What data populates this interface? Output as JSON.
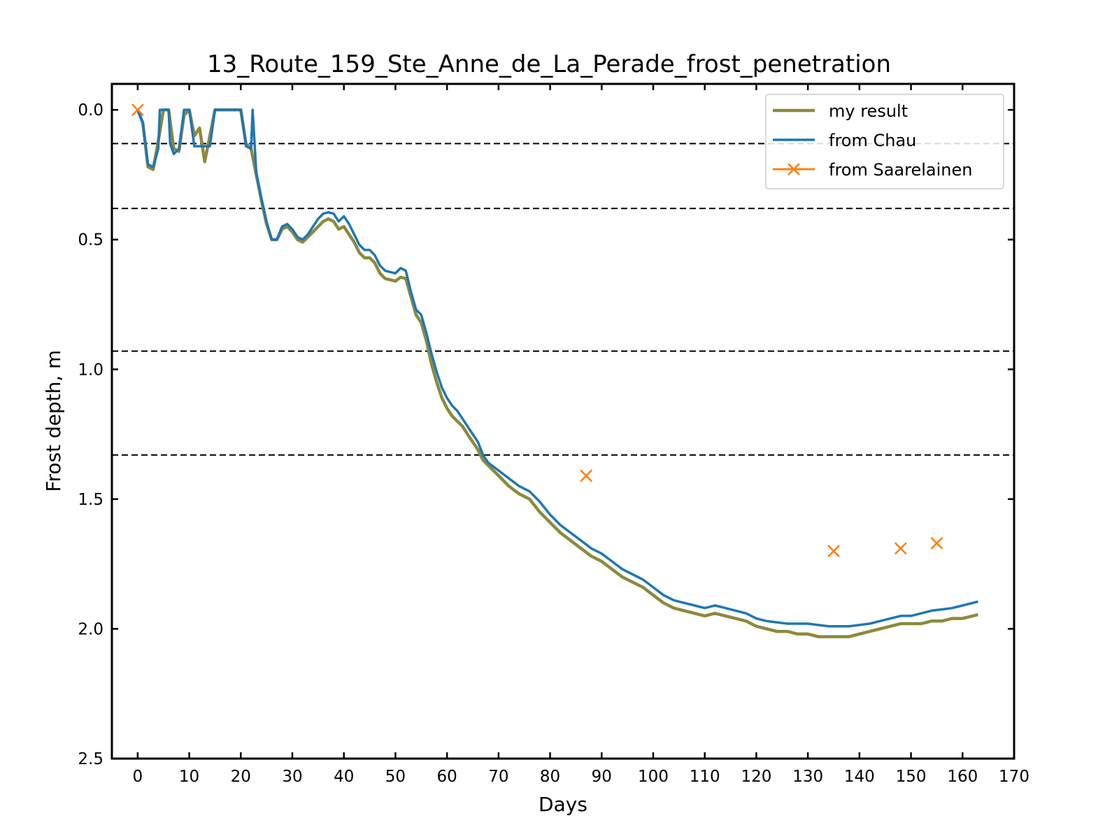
{
  "chart_data": {
    "type": "line",
    "title": "13_Route_159_Ste_Anne_de_La_Perade_frost_penetration",
    "xlabel": "Days",
    "ylabel": "Frost depth, m",
    "xlim": [
      -5,
      170
    ],
    "ylim": [
      2.5,
      -0.1
    ],
    "y_inverted": true,
    "x_ticks": [
      0,
      10,
      20,
      30,
      40,
      50,
      60,
      70,
      80,
      90,
      100,
      110,
      120,
      130,
      140,
      150,
      160,
      170
    ],
    "y_ticks": [
      "0.0",
      "0.5",
      "1.0",
      "1.5",
      "2.0",
      "2.5"
    ],
    "grid": false,
    "legend_position": "top-right",
    "reference_lines_y": [
      0.13,
      0.38,
      0.93,
      1.33
    ],
    "colors": {
      "my_result": "#8c8a3c",
      "chau": "#1f77b4",
      "saarelainen": "#ff7f0e",
      "reference": "#000000"
    },
    "series": [
      {
        "name": "my result",
        "style": "line",
        "x": [
          0,
          1,
          2,
          3,
          4,
          5,
          6,
          7,
          8,
          9,
          10,
          11,
          12,
          13,
          14,
          15,
          16,
          17,
          18,
          19,
          20,
          21,
          22,
          23,
          24,
          25,
          26,
          27,
          28,
          29,
          30,
          31,
          32,
          33,
          34,
          35,
          36,
          37,
          38,
          39,
          40,
          41,
          42,
          43,
          44,
          45,
          46,
          47,
          48,
          49,
          50,
          51,
          52,
          53,
          54,
          55,
          56,
          57,
          58,
          59,
          60,
          61,
          62,
          63,
          64,
          65,
          66,
          67,
          68,
          70,
          72,
          74,
          76,
          78,
          80,
          82,
          84,
          86,
          88,
          90,
          92,
          94,
          96,
          98,
          100,
          102,
          104,
          106,
          108,
          110,
          112,
          114,
          116,
          118,
          120,
          122,
          124,
          126,
          128,
          130,
          132,
          134,
          136,
          138,
          140,
          142,
          144,
          146,
          148,
          150,
          152,
          154,
          156,
          158,
          160,
          162,
          163
        ],
        "y": [
          0,
          0.05,
          0.22,
          0.23,
          0.12,
          0,
          0,
          0.15,
          0.16,
          0.02,
          0,
          0.1,
          0.07,
          0.2,
          0.1,
          0,
          0,
          0,
          0,
          0,
          0,
          0.13,
          0.15,
          0.25,
          0.35,
          0.44,
          0.5,
          0.5,
          0.46,
          0.45,
          0.47,
          0.5,
          0.51,
          0.49,
          0.47,
          0.45,
          0.43,
          0.42,
          0.43,
          0.46,
          0.45,
          0.48,
          0.51,
          0.55,
          0.57,
          0.57,
          0.59,
          0.63,
          0.65,
          0.655,
          0.66,
          0.645,
          0.65,
          0.72,
          0.79,
          0.82,
          0.89,
          0.98,
          1.05,
          1.11,
          1.15,
          1.18,
          1.2,
          1.22,
          1.25,
          1.28,
          1.31,
          1.35,
          1.37,
          1.41,
          1.45,
          1.48,
          1.5,
          1.55,
          1.59,
          1.63,
          1.66,
          1.69,
          1.72,
          1.74,
          1.77,
          1.8,
          1.82,
          1.84,
          1.87,
          1.9,
          1.92,
          1.93,
          1.94,
          1.95,
          1.94,
          1.95,
          1.96,
          1.97,
          1.99,
          2.0,
          2.01,
          2.01,
          2.02,
          2.02,
          2.03,
          2.03,
          2.03,
          2.03,
          2.02,
          2.01,
          2.0,
          1.99,
          1.98,
          1.98,
          1.98,
          1.97,
          1.97,
          1.96,
          1.96,
          1.95,
          1.945
        ]
      },
      {
        "name": "from Chau",
        "style": "line",
        "x": [
          0,
          1,
          2,
          3,
          4,
          4.3,
          5,
          6,
          6.3,
          7,
          8,
          9,
          9.3,
          10,
          11,
          12,
          13,
          14,
          15,
          16,
          17,
          18,
          19,
          20,
          21,
          22,
          22.3,
          23,
          24,
          25,
          26,
          27,
          28,
          29,
          30,
          31,
          32,
          33,
          34,
          35,
          36,
          37,
          38,
          39,
          40,
          41,
          42,
          43,
          44,
          45,
          46,
          47,
          48,
          49,
          50,
          51,
          52,
          53,
          54,
          55,
          56,
          57,
          58,
          59,
          60,
          61,
          62,
          63,
          64,
          65,
          66,
          67,
          68,
          70,
          72,
          74,
          76,
          78,
          80,
          82,
          84,
          86,
          88,
          90,
          92,
          94,
          96,
          98,
          100,
          102,
          104,
          106,
          108,
          110,
          112,
          114,
          116,
          118,
          120,
          122,
          124,
          126,
          128,
          130,
          132,
          134,
          136,
          138,
          140,
          142,
          144,
          146,
          148,
          150,
          152,
          154,
          156,
          158,
          160,
          162,
          163
        ],
        "y": [
          0,
          0.05,
          0.21,
          0.22,
          0.15,
          0,
          0,
          0,
          0.13,
          0.17,
          0.15,
          0,
          0,
          0,
          0.14,
          0.14,
          0.14,
          0.14,
          0,
          0,
          0,
          0,
          0,
          0,
          0.14,
          0.15,
          0,
          0.24,
          0.34,
          0.43,
          0.5,
          0.5,
          0.45,
          0.44,
          0.46,
          0.49,
          0.5,
          0.48,
          0.45,
          0.42,
          0.4,
          0.395,
          0.4,
          0.43,
          0.41,
          0.44,
          0.48,
          0.52,
          0.54,
          0.54,
          0.56,
          0.6,
          0.62,
          0.625,
          0.63,
          0.61,
          0.62,
          0.7,
          0.77,
          0.79,
          0.86,
          0.94,
          1.01,
          1.07,
          1.11,
          1.14,
          1.16,
          1.19,
          1.22,
          1.25,
          1.28,
          1.33,
          1.36,
          1.39,
          1.42,
          1.45,
          1.47,
          1.51,
          1.56,
          1.6,
          1.63,
          1.66,
          1.69,
          1.71,
          1.74,
          1.77,
          1.79,
          1.81,
          1.84,
          1.87,
          1.89,
          1.9,
          1.91,
          1.92,
          1.91,
          1.92,
          1.93,
          1.94,
          1.96,
          1.97,
          1.975,
          1.98,
          1.98,
          1.98,
          1.985,
          1.99,
          1.99,
          1.99,
          1.985,
          1.98,
          1.97,
          1.96,
          1.95,
          1.95,
          1.94,
          1.93,
          1.925,
          1.92,
          1.91,
          1.9,
          1.895
        ]
      },
      {
        "name": "from Saarelainen",
        "style": "scatter",
        "marker": "x",
        "x": [
          0,
          87,
          135,
          148,
          155
        ],
        "y": [
          0,
          1.41,
          1.7,
          1.69,
          1.67
        ]
      }
    ]
  }
}
